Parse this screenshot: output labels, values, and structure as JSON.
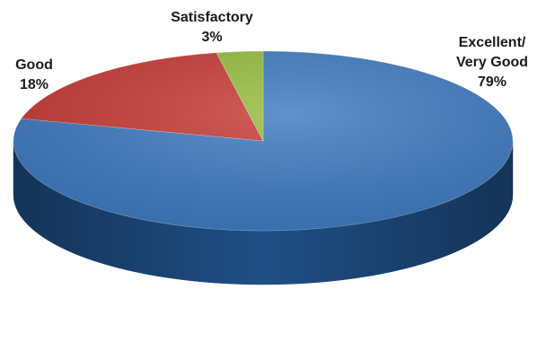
{
  "chart_data": {
    "type": "pie",
    "slices": [
      {
        "label_lines": [
          "Excellent/",
          "Very Good"
        ],
        "value_label": "79%",
        "value": 79,
        "color": "#3d7ac1",
        "side_color": "#1f4f86"
      },
      {
        "label_lines": [
          "Good"
        ],
        "value_label": "18%",
        "value": 18,
        "color": "#c73a35",
        "side_color": "#8a201d"
      },
      {
        "label_lines": [
          "Satisfactory"
        ],
        "value_label": "3%",
        "value": 3,
        "color": "#94bd3e",
        "side_color": "#5e7d22"
      }
    ],
    "style": "3d",
    "legend": "none"
  }
}
